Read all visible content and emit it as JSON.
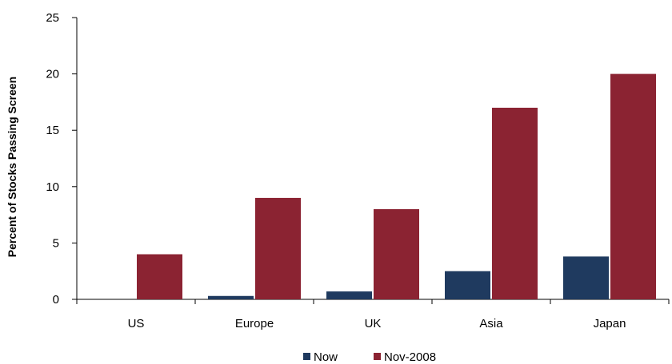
{
  "chart_data": {
    "type": "bar",
    "title": "",
    "xlabel": "",
    "ylabel": "Percent  of Stocks Passing Screen",
    "categories": [
      "US",
      "Europe",
      "UK",
      "Asia",
      "Japan"
    ],
    "series": [
      {
        "name": "Now",
        "color": "#1f3a5f",
        "values": [
          0,
          0.3,
          0.7,
          2.5,
          3.8
        ]
      },
      {
        "name": "Nov-2008",
        "color": "#8b2332",
        "values": [
          4,
          9,
          8,
          17,
          20
        ]
      }
    ],
    "ylim": [
      0,
      25
    ],
    "yticks": [
      0,
      5,
      10,
      15,
      20,
      25
    ],
    "grid": false,
    "legend": "bottom"
  }
}
